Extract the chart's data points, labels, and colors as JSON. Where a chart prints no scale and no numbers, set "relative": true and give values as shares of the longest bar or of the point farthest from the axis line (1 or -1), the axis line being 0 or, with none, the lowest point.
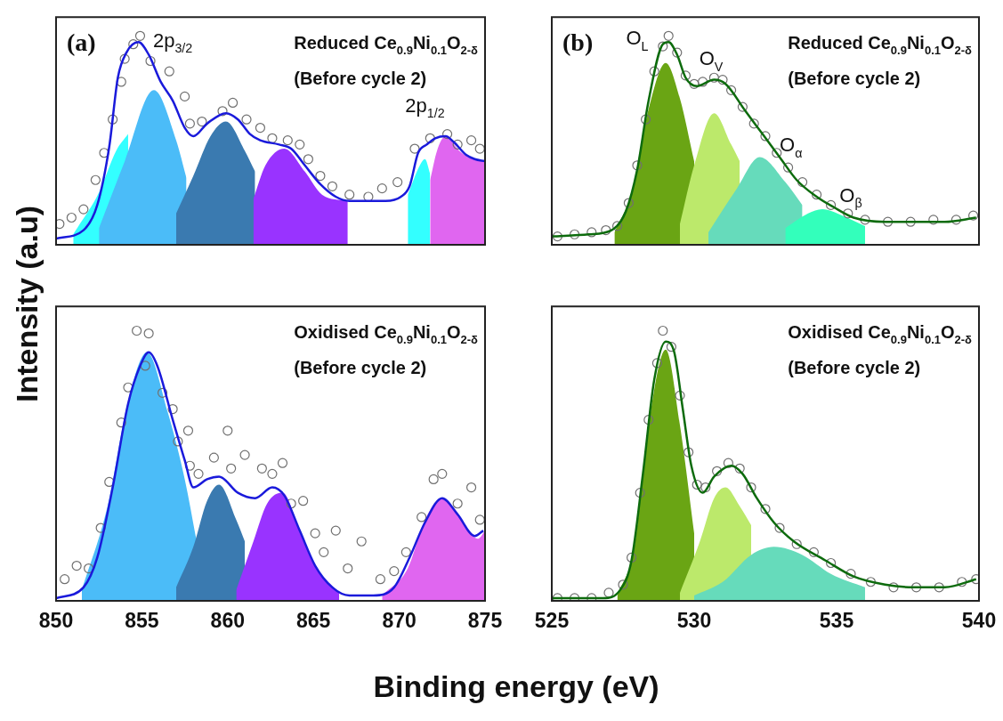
{
  "chart_data": [
    {
      "type": "line",
      "title": "Reduced Ce$_{0.9}$Ni$_{0.1}$O$_{2-δ}$",
      "subtitle": "(Before cycle 2)",
      "ylabel": "Intensity (a.u)",
      "relative": true,
      "xlim": [
        850,
        875
      ],
      "xticks": [
        850,
        855,
        860,
        865,
        870,
        875
      ],
      "tick_labels": false,
      "legend": false,
      "grid": false,
      "annotations": [
        "(a)",
        "2p$_{3/2}$",
        "2p$_{1/2}$"
      ],
      "series": [
        {
          "type": "area",
          "color": "#33ffff",
          "x": [
            851.0,
            852.5,
            853.5,
            854.2
          ],
          "values": [
            0.05,
            0.25,
            0.45,
            0.53
          ]
        },
        {
          "type": "area",
          "color": "#4bbcf8",
          "x": [
            852.5,
            854.0,
            855.7,
            857.0,
            857.6
          ],
          "values": [
            0.08,
            0.4,
            0.74,
            0.5,
            0.32
          ]
        },
        {
          "type": "area",
          "color": "#3a7ab0",
          "x": [
            857.0,
            858.0,
            859.0,
            859.9,
            861.0,
            861.6
          ],
          "values": [
            0.15,
            0.33,
            0.52,
            0.59,
            0.45,
            0.35
          ]
        },
        {
          "type": "area",
          "color": "#9933ff",
          "x": [
            861.5,
            862.2,
            863.3,
            864.5,
            865.5,
            867.0
          ],
          "values": [
            0.22,
            0.38,
            0.46,
            0.35,
            0.24,
            0.21
          ]
        },
        {
          "type": "area",
          "color": "#33ffff",
          "x": [
            870.5,
            871.2,
            871.5,
            871.8
          ],
          "values": [
            0.24,
            0.38,
            0.41,
            0.34
          ]
        },
        {
          "type": "area",
          "color": "#e066f0",
          "x": [
            871.8,
            872.2,
            872.7,
            873.5,
            874.3,
            875.0
          ],
          "values": [
            0.31,
            0.45,
            0.52,
            0.45,
            0.41,
            0.4
          ]
        },
        {
          "type": "scatter",
          "color": "#707070",
          "marker": "circle",
          "x": [
            850.2,
            850.9,
            851.6,
            852.3,
            852.8,
            853.3,
            853.8,
            854.0,
            854.5,
            854.9,
            855.5,
            856.6,
            857.5,
            857.8,
            858.5,
            859.7,
            860.3,
            861.1,
            861.9,
            862.6,
            863.5,
            864.2,
            864.7,
            865.4,
            866.1,
            867.1,
            868.2,
            869.0,
            869.9,
            870.9,
            871.8,
            872.8,
            873.4,
            874.2,
            874.7
          ],
          "values": [
            0.1,
            0.13,
            0.17,
            0.31,
            0.44,
            0.6,
            0.78,
            0.89,
            0.96,
            1.0,
            0.88,
            0.83,
            0.71,
            0.58,
            0.59,
            0.64,
            0.68,
            0.6,
            0.56,
            0.51,
            0.5,
            0.48,
            0.41,
            0.33,
            0.28,
            0.24,
            0.23,
            0.27,
            0.3,
            0.46,
            0.51,
            0.53,
            0.48,
            0.5,
            0.46
          ]
        },
        {
          "type": "line",
          "color": "#1a1adb",
          "x": [
            850.0,
            851.6,
            852.4,
            853.1,
            853.6,
            854.1,
            854.8,
            855.4,
            856.1,
            856.8,
            857.5,
            858.0,
            858.8,
            859.9,
            860.6,
            861.3,
            861.9,
            863.0,
            863.7,
            864.5,
            865.4,
            866.3,
            867.1,
            868.2,
            869.2,
            870.1,
            870.6,
            871.1,
            871.6,
            872.1,
            872.7,
            873.2,
            873.9,
            874.4,
            875.0
          ],
          "values": [
            0.03,
            0.07,
            0.19,
            0.47,
            0.8,
            0.92,
            0.97,
            0.91,
            0.78,
            0.69,
            0.56,
            0.52,
            0.58,
            0.63,
            0.6,
            0.53,
            0.5,
            0.48,
            0.46,
            0.38,
            0.29,
            0.23,
            0.21,
            0.21,
            0.21,
            0.23,
            0.28,
            0.44,
            0.48,
            0.51,
            0.52,
            0.49,
            0.43,
            0.41,
            0.4
          ]
        }
      ]
    },
    {
      "type": "line",
      "title": "Oxidised Ce$_{0.9}$Ni$_{0.1}$O$_{2-δ}$",
      "subtitle": "(Before cycle 2)",
      "xlabel": "Binding energy (eV)",
      "relative": true,
      "xlim": [
        850,
        875
      ],
      "xticks": [
        850,
        855,
        860,
        865,
        870,
        875
      ],
      "tick_labels": "x",
      "legend": false,
      "grid": false,
      "series": [
        {
          "type": "area",
          "color": "#4bbcf8",
          "x": [
            851.5,
            853.0,
            854.2,
            855.3,
            856.5,
            857.5,
            858.2
          ],
          "values": [
            0.04,
            0.35,
            0.74,
            0.92,
            0.7,
            0.45,
            0.22
          ]
        },
        {
          "type": "area",
          "color": "#3a7ab0",
          "x": [
            857.0,
            858.0,
            858.8,
            859.5,
            860.5,
            861.0
          ],
          "values": [
            0.05,
            0.2,
            0.37,
            0.43,
            0.3,
            0.22
          ]
        },
        {
          "type": "area",
          "color": "#9933ff",
          "x": [
            860.5,
            861.5,
            862.3,
            863.2,
            864.2,
            865.2,
            866.5
          ],
          "values": [
            0.04,
            0.22,
            0.36,
            0.4,
            0.26,
            0.12,
            0.03
          ]
        },
        {
          "type": "area",
          "color": "#e066f0",
          "x": [
            869.0,
            870.5,
            871.5,
            872.5,
            873.5,
            874.6,
            875.0
          ],
          "values": [
            0.02,
            0.12,
            0.3,
            0.38,
            0.31,
            0.23,
            0.26
          ]
        },
        {
          "type": "scatter",
          "color": "#707070",
          "marker": "circle",
          "x": [
            850.5,
            851.2,
            851.9,
            852.6,
            853.1,
            853.8,
            854.2,
            854.7,
            855.4,
            855.2,
            856.2,
            856.8,
            857.1,
            857.7,
            857.8,
            858.3,
            859.2,
            860.0,
            860.2,
            861.0,
            862.0,
            862.6,
            863.2,
            863.7,
            864.4,
            865.1,
            865.6,
            866.3,
            867.0,
            867.8,
            868.9,
            869.7,
            870.4,
            871.3,
            872.0,
            872.5,
            873.4,
            874.2,
            874.7
          ],
          "values": [
            0.08,
            0.13,
            0.12,
            0.27,
            0.44,
            0.66,
            0.79,
            1.0,
            0.99,
            0.87,
            0.77,
            0.71,
            0.59,
            0.63,
            0.5,
            0.47,
            0.53,
            0.63,
            0.49,
            0.54,
            0.49,
            0.47,
            0.51,
            0.36,
            0.37,
            0.25,
            0.18,
            0.26,
            0.12,
            0.22,
            0.08,
            0.11,
            0.18,
            0.31,
            0.45,
            0.47,
            0.36,
            0.42,
            0.3
          ]
        },
        {
          "type": "line",
          "color": "#1a1adb",
          "x": [
            850.0,
            851.6,
            852.4,
            853.3,
            854.2,
            854.9,
            855.4,
            855.9,
            856.8,
            857.5,
            858.0,
            858.8,
            859.5,
            860.6,
            861.6,
            862.6,
            863.3,
            864.2,
            865.1,
            866.1,
            867.1,
            868.5,
            869.7,
            870.6,
            871.5,
            872.5,
            873.4,
            874.4,
            874.9
          ],
          "values": [
            0.01,
            0.05,
            0.16,
            0.42,
            0.73,
            0.87,
            0.92,
            0.87,
            0.67,
            0.52,
            0.42,
            0.45,
            0.46,
            0.4,
            0.38,
            0.42,
            0.39,
            0.26,
            0.13,
            0.05,
            0.02,
            0.02,
            0.05,
            0.16,
            0.29,
            0.38,
            0.32,
            0.24,
            0.26
          ]
        }
      ]
    },
    {
      "type": "line",
      "title": "Reduced Ce$_{0.9}$Ni$_{0.1}$O$_{2-δ}$",
      "subtitle": "(Before cycle 2)",
      "relative": true,
      "xlim": [
        525,
        540
      ],
      "xticks": [
        525,
        530,
        535,
        540
      ],
      "tick_labels": false,
      "legend": false,
      "grid": false,
      "annotations": [
        "(b)",
        "O$_{L}$",
        "O$_{V}$",
        "O$_{α}$",
        "O$_{β}$"
      ],
      "series": [
        {
          "type": "area",
          "color": "#6aa514",
          "x": [
            527.2,
            527.8,
            528.4,
            529.0,
            529.5,
            530.0
          ],
          "values": [
            0.06,
            0.25,
            0.65,
            0.87,
            0.7,
            0.4
          ]
        },
        {
          "type": "area",
          "color": "#bce96b",
          "x": [
            529.5,
            530.0,
            530.7,
            531.3,
            531.6
          ],
          "values": [
            0.1,
            0.38,
            0.63,
            0.48,
            0.4
          ]
        },
        {
          "type": "area",
          "color": "#66dbbb",
          "x": [
            530.5,
            531.5,
            532.3,
            533.2,
            533.8
          ],
          "values": [
            0.06,
            0.27,
            0.42,
            0.3,
            0.19
          ]
        },
        {
          "type": "area",
          "color": "#33ffbb",
          "x": [
            533.2,
            534.0,
            534.5,
            535.2,
            536.0
          ],
          "values": [
            0.08,
            0.15,
            0.17,
            0.14,
            0.09
          ]
        },
        {
          "type": "scatter",
          "color": "#707070",
          "marker": "circle",
          "x": [
            525.2,
            525.8,
            526.4,
            526.9,
            527.3,
            527.7,
            528.0,
            528.3,
            528.6,
            528.9,
            529.1,
            529.4,
            529.7,
            530.0,
            530.3,
            530.7,
            531.0,
            531.3,
            531.7,
            532.1,
            532.5,
            532.9,
            533.3,
            533.8,
            534.3,
            534.8,
            535.4,
            536.0,
            536.8,
            537.6,
            538.4,
            539.2,
            539.8
          ],
          "values": [
            0.04,
            0.05,
            0.06,
            0.07,
            0.09,
            0.2,
            0.38,
            0.6,
            0.83,
            0.95,
            1.0,
            0.92,
            0.81,
            0.77,
            0.78,
            0.8,
            0.79,
            0.74,
            0.66,
            0.58,
            0.52,
            0.44,
            0.37,
            0.3,
            0.24,
            0.19,
            0.15,
            0.12,
            0.11,
            0.11,
            0.12,
            0.12,
            0.14
          ]
        },
        {
          "type": "line",
          "color": "#0d6b0d",
          "x": [
            525.0,
            526.3,
            527.1,
            527.6,
            528.0,
            528.4,
            528.9,
            529.1,
            529.4,
            529.7,
            530.1,
            530.7,
            531.1,
            531.8,
            532.4,
            533.0,
            533.6,
            534.3,
            534.9,
            535.6,
            536.7,
            537.7,
            538.8,
            539.9
          ],
          "values": [
            0.04,
            0.05,
            0.07,
            0.16,
            0.36,
            0.69,
            0.96,
            0.97,
            0.91,
            0.8,
            0.76,
            0.79,
            0.77,
            0.64,
            0.53,
            0.42,
            0.31,
            0.23,
            0.18,
            0.13,
            0.11,
            0.11,
            0.11,
            0.13
          ]
        }
      ]
    },
    {
      "type": "line",
      "title": "Oxidised Ce$_{0.9}$Ni$_{0.1}$O$_{2-δ}$",
      "subtitle": "(Before cycle 2)",
      "relative": true,
      "xlim": [
        525,
        540
      ],
      "xticks": [
        525,
        530,
        535,
        540
      ],
      "tick_labels": "x",
      "legend": false,
      "grid": false,
      "series": [
        {
          "type": "area",
          "color": "#6aa514",
          "x": [
            527.3,
            527.9,
            528.4,
            529.0,
            529.5,
            530.0
          ],
          "values": [
            0.02,
            0.2,
            0.65,
            0.93,
            0.65,
            0.25
          ]
        },
        {
          "type": "area",
          "color": "#bce96b",
          "x": [
            529.5,
            530.2,
            530.7,
            531.1,
            531.6,
            532.0
          ],
          "values": [
            0.03,
            0.22,
            0.38,
            0.42,
            0.35,
            0.28
          ]
        },
        {
          "type": "area",
          "color": "#66dbbb",
          "x": [
            530.0,
            531.0,
            532.0,
            532.8,
            533.8,
            534.8,
            536.0
          ],
          "values": [
            0.02,
            0.07,
            0.17,
            0.2,
            0.17,
            0.1,
            0.05
          ]
        },
        {
          "type": "scatter",
          "color": "#707070",
          "marker": "circle",
          "x": [
            525.2,
            525.8,
            526.4,
            527.0,
            527.5,
            527.8,
            528.1,
            528.4,
            528.7,
            528.9,
            529.2,
            529.5,
            529.8,
            530.1,
            530.4,
            530.8,
            531.2,
            531.6,
            532.0,
            532.5,
            533.0,
            533.6,
            534.2,
            534.8,
            535.5,
            536.2,
            537.0,
            537.8,
            538.6,
            539.4,
            539.9
          ],
          "values": [
            0.01,
            0.01,
            0.01,
            0.03,
            0.06,
            0.16,
            0.4,
            0.67,
            0.88,
            1.0,
            0.94,
            0.76,
            0.55,
            0.43,
            0.42,
            0.48,
            0.51,
            0.49,
            0.42,
            0.34,
            0.27,
            0.21,
            0.18,
            0.14,
            0.1,
            0.07,
            0.05,
            0.05,
            0.05,
            0.07,
            0.08
          ]
        },
        {
          "type": "line",
          "color": "#0d6b0d",
          "x": [
            525.0,
            526.8,
            527.4,
            527.8,
            528.2,
            528.6,
            529.0,
            529.3,
            529.6,
            529.9,
            530.3,
            530.7,
            531.3,
            531.7,
            532.2,
            532.8,
            533.5,
            534.6,
            535.6,
            536.7,
            537.7,
            538.8,
            539.9
          ],
          "values": [
            0.01,
            0.01,
            0.04,
            0.15,
            0.47,
            0.82,
            0.96,
            0.92,
            0.71,
            0.5,
            0.4,
            0.46,
            0.5,
            0.47,
            0.38,
            0.29,
            0.22,
            0.15,
            0.09,
            0.06,
            0.05,
            0.05,
            0.08
          ]
        }
      ]
    }
  ]
}
